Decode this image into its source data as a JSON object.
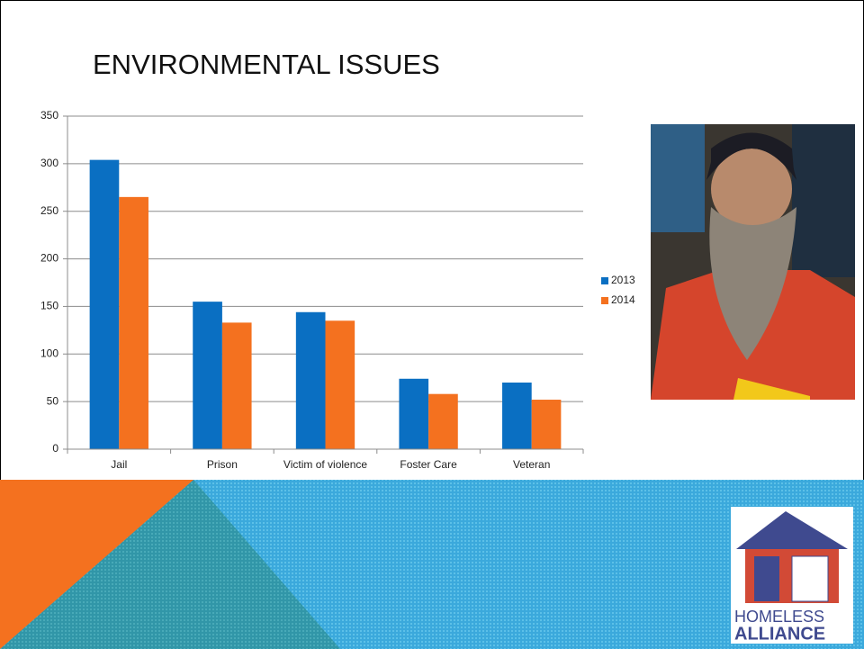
{
  "slide": {
    "title": "ENVIRONMENTAL ISSUES",
    "logo": {
      "line1": "HOMELESS",
      "line2": "ALLIANCE"
    }
  },
  "chart_data": {
    "type": "bar",
    "categories": [
      "Jail",
      "Prison",
      "Victim of violence",
      "Foster Care",
      "Veteran"
    ],
    "series": [
      {
        "name": "2013",
        "color": "#0a6fc2",
        "values": [
          304,
          155,
          144,
          74,
          70
        ]
      },
      {
        "name": "2014",
        "color": "#f4711f",
        "values": [
          265,
          133,
          135,
          58,
          52
        ]
      }
    ],
    "ylim": [
      0,
      350
    ],
    "yticks": [
      0,
      50,
      100,
      150,
      200,
      250,
      300,
      350
    ],
    "grid": true,
    "legend": "right"
  }
}
